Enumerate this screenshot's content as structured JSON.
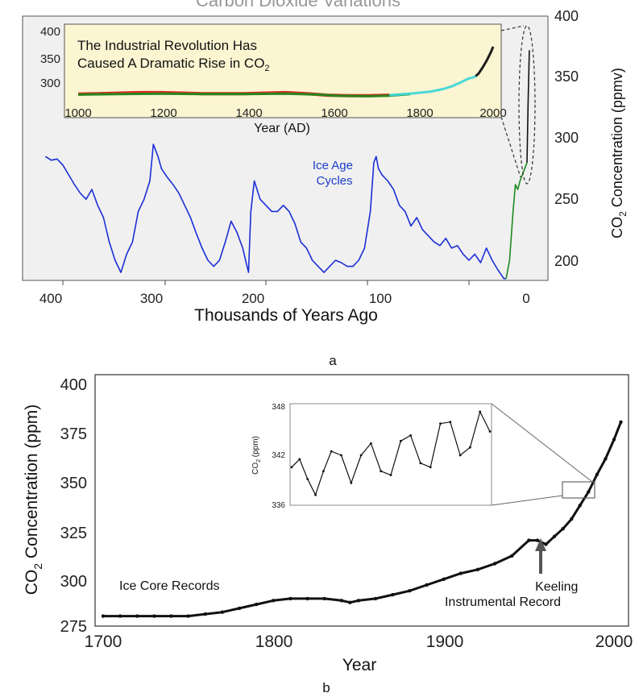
{
  "chart_data": [
    {
      "type": "line",
      "panel_label": "a",
      "title": "Carbon Dioxide Variations",
      "xlabel": "Thousands of Years Ago",
      "ylabel_main": "CO",
      "ylabel_sub": "2",
      "ylabel_rest": " Concentration (ppmv)",
      "x_reversed": true,
      "xlim": [
        418,
        -12
      ],
      "ylim": [
        180,
        400
      ],
      "xticks": [
        400,
        300,
        200,
        100,
        0
      ],
      "yticks": [
        200,
        250,
        300,
        350,
        400
      ],
      "annotations": [
        {
          "text_line1": "Ice Age",
          "text_line2": "Cycles",
          "color": "#1a3ccc"
        }
      ],
      "series": [
        {
          "color": "#1a2fd6",
          "x": [
            415,
            410,
            405,
            400,
            395,
            390,
            385,
            380,
            375,
            370,
            365,
            360,
            355,
            350,
            345,
            340,
            335,
            330,
            325,
            322,
            318,
            315,
            310,
            305,
            300,
            295,
            290,
            285,
            280,
            275,
            270,
            265,
            260,
            255,
            250,
            245,
            242,
            240,
            238,
            235,
            230,
            225,
            220,
            215,
            210,
            205,
            200,
            195,
            190,
            185,
            180,
            175,
            170,
            165,
            160,
            155,
            150,
            145,
            140,
            135,
            132,
            130,
            128,
            125,
            120,
            115,
            110,
            105,
            100,
            95,
            90,
            85,
            80,
            75,
            70,
            65,
            60,
            55,
            50,
            45,
            40,
            35,
            30,
            25,
            20,
            18
          ],
          "y": [
            285,
            282,
            283,
            278,
            270,
            262,
            255,
            250,
            258,
            245,
            235,
            215,
            200,
            190,
            205,
            215,
            240,
            250,
            265,
            295,
            285,
            275,
            268,
            262,
            255,
            245,
            235,
            222,
            210,
            200,
            195,
            200,
            215,
            232,
            223,
            210,
            198,
            190,
            240,
            265,
            250,
            245,
            240,
            240,
            245,
            240,
            230,
            215,
            210,
            200,
            195,
            190,
            195,
            200,
            198,
            195,
            195,
            200,
            210,
            240,
            280,
            285,
            275,
            270,
            265,
            258,
            245,
            240,
            228,
            235,
            225,
            220,
            215,
            212,
            218,
            210,
            212,
            205,
            200,
            205,
            198,
            210,
            200,
            192,
            185,
            185
          ]
        },
        {
          "color": "#1e8a1e",
          "x": [
            18,
            15,
            12,
            10,
            8,
            6,
            4,
            2,
            0
          ],
          "y": [
            185,
            200,
            240,
            262,
            258,
            265,
            270,
            275,
            280
          ]
        },
        {
          "color": "#111111",
          "x": [
            0,
            -1,
            -2
          ],
          "y": [
            280,
            330,
            372
          ]
        }
      ],
      "inset": {
        "title_line1": "The Industrial Revolution Has",
        "title_line2_main": "Caused A Dramatic Rise in CO",
        "title_line2_sub": "2",
        "xlabel": "Year (AD)",
        "xlim": [
          1000,
          2000
        ],
        "ylim": [
          262,
          400
        ],
        "xticks": [
          1000,
          1200,
          1400,
          1600,
          1800,
          2000
        ],
        "yticks": [
          300,
          350,
          400
        ],
        "background": "#fbf5d2",
        "series": [
          {
            "color": "#e01a1a",
            "x": [
              1000,
              1050,
              1100,
              1150,
              1200,
              1250,
              1300,
              1350,
              1400,
              1450,
              1500,
              1550,
              1600,
              1650,
              1700,
              1750
            ],
            "y": [
              280,
              281,
              282,
              283,
              283,
              282,
              281,
              281,
              281,
              282,
              283,
              281,
              278,
              277,
              277,
              278
            ]
          },
          {
            "color": "#1e8a1e",
            "x": [
              1000,
              1100,
              1200,
              1300,
              1400,
              1500,
              1580,
              1620,
              1700,
              1750,
              1800
            ],
            "y": [
              279,
              280,
              281,
              280,
              280,
              281,
              279,
              277,
              276,
              277,
              280
            ]
          },
          {
            "color": "#3fd6d6",
            "x": [
              1750,
              1800,
              1850,
              1880,
              1900,
              1920,
              1940,
              1950,
              1960
            ],
            "y": [
              278,
              281,
              285,
              290,
              295,
              302,
              310,
              312,
              315
            ]
          },
          {
            "color": "#111111",
            "x": [
              1958,
              1965,
              1975,
              1985,
              1995,
              2000
            ],
            "y": [
              315,
              320,
              332,
              346,
              362,
              372
            ]
          }
        ]
      }
    },
    {
      "type": "line",
      "panel_label": "b",
      "xlabel": "Year",
      "ylabel_main": "CO",
      "ylabel_sub": "2",
      "ylabel_rest": " Concentration (ppm)",
      "xlim": [
        1695,
        2010
      ],
      "ylim": [
        275,
        400
      ],
      "xticks": [
        1700,
        1800,
        1900,
        2000
      ],
      "yticks": [
        275,
        300,
        325,
        350,
        375,
        400
      ],
      "annotations": [
        {
          "text": "Ice Core Records"
        },
        {
          "text_line1": "Keeling",
          "text_line2": "Instrumental Record",
          "arrow_x": 1958
        }
      ],
      "series": [
        {
          "color": "#111111",
          "x": [
            1700,
            1710,
            1720,
            1730,
            1740,
            1750,
            1760,
            1770,
            1780,
            1790,
            1800,
            1810,
            1820,
            1830,
            1840,
            1845,
            1850,
            1860,
            1870,
            1880,
            1890,
            1900,
            1910,
            1920,
            1930,
            1940,
            1950,
            1955,
            1960,
            1965,
            1970,
            1975,
            1980,
            1985,
            1990,
            1995,
            2000,
            2004
          ],
          "y": [
            281,
            281,
            281,
            281,
            281,
            281,
            282,
            283,
            285,
            287,
            289,
            290,
            290,
            290,
            289,
            288,
            289,
            290,
            292,
            294,
            297,
            300,
            303,
            305,
            308,
            312,
            320,
            320,
            318,
            322,
            326,
            331,
            338,
            345,
            354,
            362,
            372,
            381
          ]
        }
      ],
      "inset": {
        "ylabel_main": "CO",
        "ylabel_sub": "2",
        "ylabel_rest": " (ppm)",
        "yticks": [
          336,
          342,
          348
        ],
        "ylim": [
          336,
          348
        ],
        "t": [
          0,
          0.04,
          0.08,
          0.12,
          0.16,
          0.2,
          0.25,
          0.3,
          0.35,
          0.4,
          0.45,
          0.5,
          0.55,
          0.6,
          0.65,
          0.7,
          0.75,
          0.8,
          0.85,
          0.9,
          0.95,
          1.0
        ],
        "y": [
          340.5,
          341.5,
          339,
          337,
          340,
          342.5,
          342,
          338.5,
          342,
          343.5,
          340,
          339.5,
          343.8,
          344.5,
          341,
          340.5,
          346,
          346.2,
          342,
          343,
          347.5,
          345
        ]
      }
    }
  ]
}
